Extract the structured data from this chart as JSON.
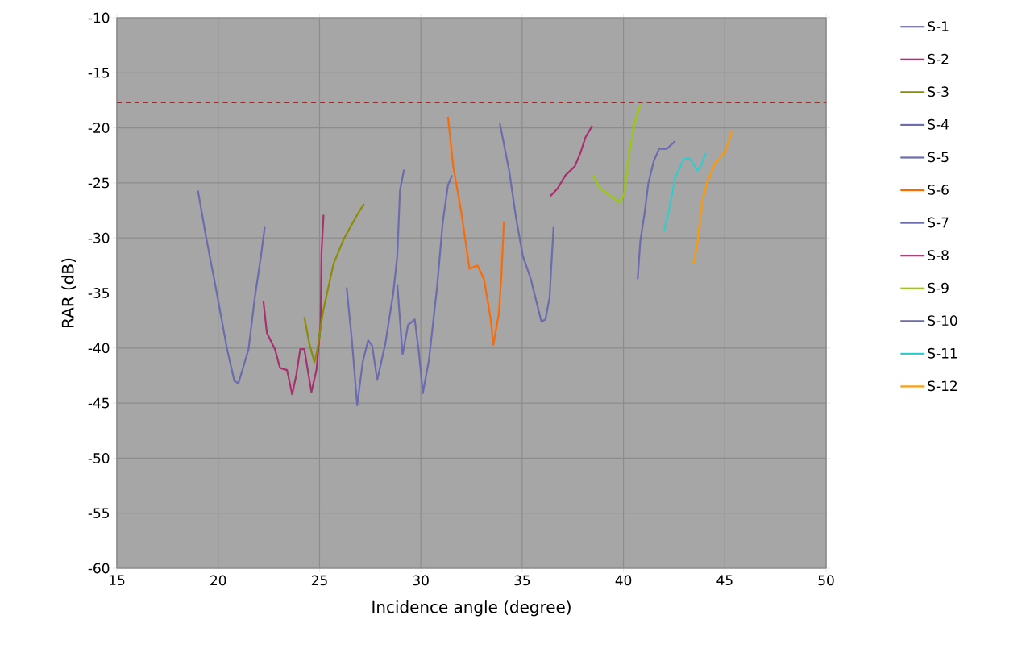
{
  "chart_data": {
    "type": "line",
    "xlabel": "Incidence angle (degree)",
    "ylabel": "RAR (dB)",
    "xlim": [
      15,
      50
    ],
    "ylim": [
      -60,
      -10
    ],
    "xticks": [
      15,
      20,
      25,
      30,
      35,
      40,
      45,
      50
    ],
    "yticks": [
      -60,
      -55,
      -50,
      -45,
      -40,
      -35,
      -30,
      -25,
      -20,
      -15,
      -10
    ],
    "grid": true,
    "legend": "right",
    "marker": "none",
    "line_style": "solid",
    "ref_lines": [
      {
        "axis": "y",
        "value": -17.7,
        "color": "#ff0000",
        "line_style": "dashed"
      }
    ],
    "series": [
      {
        "name": "S-1",
        "color": "#6b6baf",
        "x": [
          19.0,
          19.4,
          19.85,
          20.44,
          20.8,
          21.0,
          21.5,
          21.8,
          22.1,
          22.3
        ],
        "values": [
          -25.7,
          -29.9,
          -34.2,
          -40.1,
          -43.0,
          -43.2,
          -40.1,
          -35.5,
          -31.8,
          -29.0
        ]
      },
      {
        "name": "S-2",
        "color": "#a8306e",
        "x": [
          22.23,
          22.4,
          22.8,
          23.05,
          23.4,
          23.65,
          23.85,
          24.05,
          24.25,
          24.6,
          24.85,
          25.05,
          25.1,
          25.2
        ],
        "values": [
          -35.7,
          -38.6,
          -40.1,
          -41.8,
          -42.0,
          -44.2,
          -42.5,
          -40.1,
          -40.1,
          -44.0,
          -42.0,
          -37.9,
          -31.3,
          -27.9
        ]
      },
      {
        "name": "S-3",
        "color": "#8c8c00",
        "x": [
          24.25,
          24.5,
          24.75,
          24.9,
          25.17,
          25.7,
          26.2,
          26.86,
          27.2
        ],
        "values": [
          -37.2,
          -39.6,
          -41.3,
          -40.1,
          -36.7,
          -32.3,
          -30.1,
          -27.9,
          -26.9
        ]
      },
      {
        "name": "S-4",
        "color": "#6b6baf",
        "x": [
          26.34,
          26.6,
          26.86,
          27.13,
          27.4,
          27.6,
          27.85,
          28.25,
          28.64,
          28.84,
          28.97,
          29.17
        ],
        "values": [
          -34.5,
          -39.3,
          -45.2,
          -41.3,
          -39.3,
          -39.8,
          -42.9,
          -39.6,
          -35.0,
          -31.6,
          -25.7,
          -23.8
        ]
      },
      {
        "name": "S-5",
        "color": "#6b6baf",
        "x": [
          28.84,
          29.1,
          29.37,
          29.7,
          29.9,
          30.1,
          30.4,
          30.8,
          31.08,
          31.34,
          31.54
        ],
        "values": [
          -34.2,
          -40.6,
          -37.9,
          -37.4,
          -40.3,
          -44.1,
          -41.1,
          -34.5,
          -28.6,
          -25.2,
          -24.3
        ]
      },
      {
        "name": "S-6",
        "color": "#ff6a00",
        "x": [
          31.34,
          31.6,
          32.0,
          32.4,
          32.8,
          33.12,
          33.45,
          33.58,
          33.85,
          33.98,
          34.1
        ],
        "values": [
          -19.0,
          -23.5,
          -27.7,
          -32.8,
          -32.5,
          -33.75,
          -37.4,
          -39.7,
          -36.9,
          -33.3,
          -28.5
        ]
      },
      {
        "name": "S-7",
        "color": "#6b6baf",
        "x": [
          33.9,
          34.37,
          34.7,
          35.03,
          35.43,
          35.95,
          36.15,
          36.35,
          36.55
        ],
        "values": [
          -19.6,
          -24.0,
          -28.2,
          -31.6,
          -33.75,
          -37.6,
          -37.4,
          -35.45,
          -29.0
        ]
      },
      {
        "name": "S-8",
        "color": "#a8306e",
        "x": [
          36.4,
          36.75,
          37.14,
          37.6,
          37.87,
          38.13,
          38.46
        ],
        "values": [
          -26.2,
          -25.5,
          -24.3,
          -23.5,
          -22.3,
          -20.85,
          -19.8
        ]
      },
      {
        "name": "S-9",
        "color": "#99cc00",
        "x": [
          38.5,
          38.85,
          39.38,
          39.84,
          40.04,
          40.3,
          40.57,
          40.83
        ],
        "values": [
          -24.3,
          -25.5,
          -26.2,
          -26.8,
          -26.0,
          -22.1,
          -19.4,
          -17.9
        ]
      },
      {
        "name": "S-10",
        "color": "#6b6baf",
        "x": [
          40.7,
          40.83,
          41.03,
          41.23,
          41.5,
          41.76,
          42.15,
          42.55
        ],
        "values": [
          -33.75,
          -30.3,
          -27.9,
          -25.0,
          -23.0,
          -21.9,
          -21.9,
          -21.2
        ]
      },
      {
        "name": "S-11",
        "color": "#33cccc",
        "x": [
          42.0,
          42.28,
          42.55,
          43.0,
          43.27,
          43.66,
          43.86,
          44.06
        ],
        "values": [
          -29.4,
          -27.2,
          -24.5,
          -22.8,
          -22.8,
          -23.9,
          -23.3,
          -22.3
        ]
      },
      {
        "name": "S-12",
        "color": "#ff9900",
        "x": [
          43.46,
          43.66,
          43.86,
          44.12,
          44.5,
          45.04,
          45.37
        ],
        "values": [
          -32.4,
          -30.3,
          -26.9,
          -25.0,
          -23.3,
          -22.1,
          -20.2
        ]
      }
    ]
  }
}
